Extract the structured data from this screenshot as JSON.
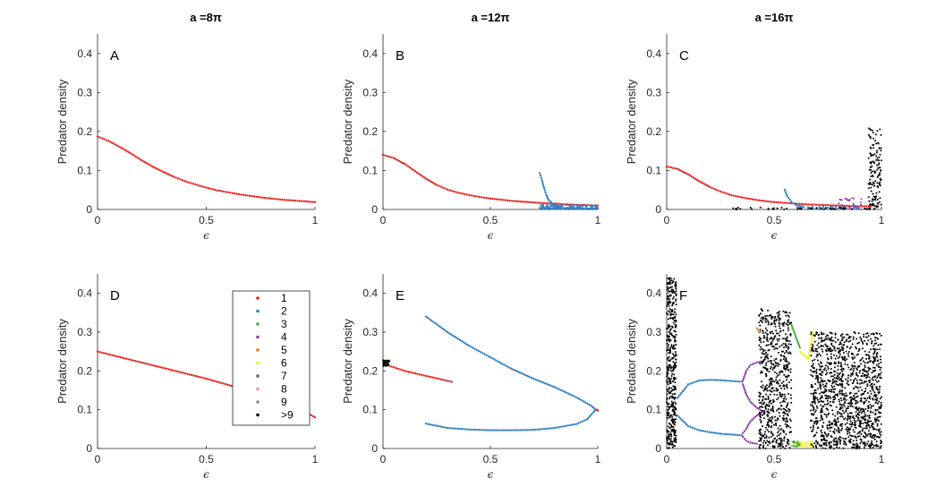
{
  "colors": {
    "1": "#e8231f",
    "2": "#2f7fc1",
    "3": "#3aa83a",
    "4": "#8e3ea8",
    "5": "#ef7a16",
    "6": "#f2ee2c",
    "7": "#8a5a32",
    "8": "#f08aba",
    "9": "#8c8c8c",
    ">9": "#000000"
  },
  "column_titles": [
    "a =8π",
    "a =12π",
    "a =16π"
  ],
  "legend": {
    "entries": [
      {
        "key": "1",
        "label": "1"
      },
      {
        "key": "2",
        "label": "2"
      },
      {
        "key": "3",
        "label": "3"
      },
      {
        "key": "4",
        "label": "4"
      },
      {
        "key": "5",
        "label": "5"
      },
      {
        "key": "6",
        "label": "6"
      },
      {
        "key": "7",
        "label": "7"
      },
      {
        "key": "8",
        "label": "8"
      },
      {
        "key": "9",
        "label": "9"
      },
      {
        "key": ">9",
        "label": ">9"
      }
    ]
  },
  "chart_data": [
    {
      "panel": "A",
      "type": "scatter",
      "xlabel": "ϵ",
      "ylabel": "Predator density",
      "xlim": [
        0,
        1
      ],
      "ylim": [
        0,
        0.45
      ],
      "xticks": [
        {
          "v": 0,
          "label": "0"
        },
        {
          "v": 0.5,
          "label": "0.5"
        },
        {
          "v": 1,
          "label": "1"
        }
      ],
      "yticks": [
        {
          "v": 0,
          "label": "0"
        },
        {
          "v": 0.1,
          "label": "0.1"
        },
        {
          "v": 0.2,
          "label": "0.2"
        },
        {
          "v": 0.3,
          "label": "0.3"
        },
        {
          "v": 0.4,
          "label": "0.4"
        }
      ],
      "series": [
        {
          "key": "1",
          "kind": "curve",
          "x": [
            0,
            0.05,
            0.1,
            0.15,
            0.2,
            0.25,
            0.3,
            0.35,
            0.4,
            0.45,
            0.5,
            0.55,
            0.6,
            0.65,
            0.7,
            0.75,
            0.8,
            0.85,
            0.9,
            0.95,
            1.0
          ],
          "y": [
            0.187,
            0.176,
            0.161,
            0.145,
            0.127,
            0.111,
            0.097,
            0.084,
            0.073,
            0.064,
            0.056,
            0.049,
            0.044,
            0.039,
            0.035,
            0.031,
            0.028,
            0.025,
            0.023,
            0.021,
            0.019
          ]
        }
      ]
    },
    {
      "panel": "B",
      "type": "scatter",
      "xlabel": "ϵ",
      "ylabel": "Predator density",
      "xlim": [
        0,
        1
      ],
      "ylim": [
        0,
        0.45
      ],
      "xticks": [
        {
          "v": 0,
          "label": "0"
        },
        {
          "v": 0.5,
          "label": "0.5"
        },
        {
          "v": 1,
          "label": "1"
        }
      ],
      "yticks": [
        {
          "v": 0,
          "label": "0"
        },
        {
          "v": 0.1,
          "label": "0.1"
        },
        {
          "v": 0.2,
          "label": "0.2"
        },
        {
          "v": 0.3,
          "label": "0.3"
        },
        {
          "v": 0.4,
          "label": "0.4"
        }
      ],
      "series": [
        {
          "key": "1",
          "kind": "curve",
          "x": [
            0,
            0.05,
            0.1,
            0.15,
            0.2,
            0.25,
            0.3,
            0.35,
            0.4,
            0.45,
            0.5,
            0.55,
            0.6,
            0.65,
            0.7,
            0.75,
            0.8,
            0.85,
            0.9,
            0.95,
            1.0
          ],
          "y": [
            0.14,
            0.132,
            0.117,
            0.098,
            0.079,
            0.063,
            0.051,
            0.043,
            0.037,
            0.032,
            0.028,
            0.025,
            0.022,
            0.02,
            0.018,
            0.016,
            0.015,
            0.013,
            0.012,
            0.011,
            0.01
          ]
        },
        {
          "key": "2",
          "kind": "curve",
          "x": [
            0.73,
            0.74,
            0.75,
            0.76,
            0.77,
            0.79,
            0.81
          ],
          "y": [
            0.093,
            0.075,
            0.055,
            0.038,
            0.025,
            0.015,
            0.01
          ]
        },
        {
          "key": "2",
          "kind": "curve",
          "x": [
            0.73,
            0.75,
            0.8,
            0.85,
            0.9,
            0.95,
            1.0
          ],
          "y": [
            0.004,
            0.004,
            0.003,
            0.003,
            0.003,
            0.002,
            0.002
          ]
        },
        {
          "key": "2",
          "kind": "band",
          "xmin": 0.73,
          "xmax": 1.0,
          "ymin": 0.0,
          "ymax": 0.012,
          "n": 150
        }
      ]
    },
    {
      "panel": "C",
      "type": "scatter",
      "xlabel": "ϵ",
      "ylabel": "Predator density",
      "xlim": [
        0,
        1
      ],
      "ylim": [
        0,
        0.45
      ],
      "xticks": [
        {
          "v": 0,
          "label": "0"
        },
        {
          "v": 0.5,
          "label": "0.5"
        },
        {
          "v": 1,
          "label": "1"
        }
      ],
      "yticks": [
        {
          "v": 0,
          "label": "0"
        },
        {
          "v": 0.1,
          "label": "0.1"
        },
        {
          "v": 0.2,
          "label": "0.2"
        },
        {
          "v": 0.3,
          "label": "0.3"
        },
        {
          "v": 0.4,
          "label": "0.4"
        }
      ],
      "series": [
        {
          "key": "1",
          "kind": "curve",
          "x": [
            0,
            0.05,
            0.1,
            0.15,
            0.2,
            0.25,
            0.3,
            0.35,
            0.4,
            0.45,
            0.5,
            0.55,
            0.6,
            0.65,
            0.7,
            0.75,
            0.8,
            0.85,
            0.9,
            0.95
          ],
          "y": [
            0.11,
            0.104,
            0.09,
            0.073,
            0.058,
            0.046,
            0.037,
            0.031,
            0.026,
            0.022,
            0.019,
            0.017,
            0.015,
            0.013,
            0.012,
            0.011,
            0.01,
            0.009,
            0.008,
            0.008
          ]
        },
        {
          "key": "2",
          "kind": "curve",
          "x": [
            0.55,
            0.56,
            0.58,
            0.6,
            0.63
          ],
          "y": [
            0.05,
            0.035,
            0.02,
            0.012,
            0.008
          ]
        },
        {
          "key": "2",
          "kind": "band",
          "xmin": 0.6,
          "xmax": 0.9,
          "ymin": 0.0,
          "ymax": 0.008,
          "n": 70
        },
        {
          "key": "4",
          "kind": "band",
          "xmin": 0.8,
          "xmax": 0.95,
          "ymin": 0.0,
          "ymax": 0.03,
          "n": 30
        },
        {
          "key": ">9",
          "kind": "band",
          "xmin": 0.3,
          "xmax": 0.95,
          "ymin": 0.0,
          "ymax": 0.005,
          "n": 50
        },
        {
          "key": ">9",
          "kind": "band",
          "xmin": 0.94,
          "xmax": 1.0,
          "ymin": 0.0,
          "ymax": 0.21,
          "n": 140
        }
      ]
    },
    {
      "panel": "D",
      "type": "scatter",
      "xlabel": "ϵ",
      "ylabel": "Predator density",
      "xlim": [
        0,
        1
      ],
      "ylim": [
        0,
        0.45
      ],
      "xticks": [
        {
          "v": 0,
          "label": "0"
        },
        {
          "v": 0.5,
          "label": "0.5"
        },
        {
          "v": 1,
          "label": "1"
        }
      ],
      "yticks": [
        {
          "v": 0,
          "label": "0"
        },
        {
          "v": 0.1,
          "label": "0.1"
        },
        {
          "v": 0.2,
          "label": "0.2"
        },
        {
          "v": 0.3,
          "label": "0.3"
        },
        {
          "v": 0.4,
          "label": "0.4"
        }
      ],
      "series": [
        {
          "key": "1",
          "kind": "curve",
          "x": [
            0,
            0.25,
            0.5,
            0.75,
            0.9,
            1.0
          ],
          "y": [
            0.25,
            0.215,
            0.18,
            0.14,
            0.113,
            0.08
          ]
        }
      ]
    },
    {
      "panel": "E",
      "type": "scatter",
      "xlabel": "ϵ",
      "ylabel": "Predator density",
      "xlim": [
        0,
        1
      ],
      "ylim": [
        0,
        0.45
      ],
      "xticks": [
        {
          "v": 0,
          "label": "0"
        },
        {
          "v": 0.5,
          "label": "0.5"
        },
        {
          "v": 1,
          "label": "1"
        }
      ],
      "yticks": [
        {
          "v": 0,
          "label": "0"
        },
        {
          "v": 0.1,
          "label": "0.1"
        },
        {
          "v": 0.2,
          "label": "0.2"
        },
        {
          "v": 0.3,
          "label": "0.3"
        },
        {
          "v": 0.4,
          "label": "0.4"
        }
      ],
      "series": [
        {
          "key": ">9",
          "kind": "band",
          "xmin": 0.0,
          "xmax": 0.03,
          "ymin": 0.212,
          "ymax": 0.228,
          "n": 40
        },
        {
          "key": "1",
          "kind": "curve",
          "x": [
            0.03,
            0.1,
            0.2,
            0.32
          ],
          "y": [
            0.213,
            0.2,
            0.187,
            0.172
          ]
        },
        {
          "key": "2",
          "kind": "curve",
          "x": [
            0.2,
            0.3,
            0.4,
            0.5,
            0.6,
            0.7,
            0.8,
            0.9,
            0.97,
            0.99
          ],
          "y": [
            0.34,
            0.3,
            0.265,
            0.235,
            0.205,
            0.18,
            0.158,
            0.132,
            0.11,
            0.1
          ]
        },
        {
          "key": "2",
          "kind": "curve",
          "x": [
            0.2,
            0.3,
            0.4,
            0.5,
            0.6,
            0.7,
            0.8,
            0.9,
            0.95,
            0.99
          ],
          "y": [
            0.064,
            0.053,
            0.049,
            0.047,
            0.047,
            0.048,
            0.053,
            0.063,
            0.075,
            0.1
          ]
        },
        {
          "key": "1",
          "kind": "curve",
          "x": [
            0.995,
            1.0
          ],
          "y": [
            0.1,
            0.098
          ]
        }
      ]
    },
    {
      "panel": "F",
      "type": "scatter",
      "xlabel": "ϵ",
      "ylabel": "Predator density",
      "xlim": [
        0,
        1
      ],
      "ylim": [
        0,
        0.45
      ],
      "xticks": [
        {
          "v": 0,
          "label": "0"
        },
        {
          "v": 0.5,
          "label": "0.5"
        },
        {
          "v": 1,
          "label": "1"
        }
      ],
      "yticks": [
        {
          "v": 0,
          "label": "0"
        },
        {
          "v": 0.1,
          "label": "0.1"
        },
        {
          "v": 0.2,
          "label": "0.2"
        },
        {
          "v": 0.3,
          "label": "0.3"
        },
        {
          "v": 0.4,
          "label": "0.4"
        }
      ],
      "series": [
        {
          "key": ">9",
          "kind": "band",
          "xmin": 0.0,
          "xmax": 0.045,
          "ymin": 0.0,
          "ymax": 0.44,
          "n": 450
        },
        {
          "key": "2",
          "kind": "curve",
          "x": [
            0.05,
            0.1,
            0.15,
            0.2,
            0.25,
            0.3,
            0.35
          ],
          "y": [
            0.13,
            0.165,
            0.175,
            0.177,
            0.176,
            0.174,
            0.172
          ]
        },
        {
          "key": "2",
          "kind": "curve",
          "x": [
            0.05,
            0.1,
            0.15,
            0.2,
            0.25,
            0.3,
            0.35
          ],
          "y": [
            0.085,
            0.058,
            0.047,
            0.042,
            0.038,
            0.036,
            0.034
          ]
        },
        {
          "key": "4",
          "kind": "curve",
          "x": [
            0.355,
            0.37,
            0.39,
            0.42,
            0.45
          ],
          "y": [
            0.175,
            0.2,
            0.215,
            0.222,
            0.225
          ]
        },
        {
          "key": "4",
          "kind": "curve",
          "x": [
            0.355,
            0.37,
            0.39,
            0.42,
            0.45
          ],
          "y": [
            0.165,
            0.14,
            0.12,
            0.105,
            0.095
          ]
        },
        {
          "key": "4",
          "kind": "curve",
          "x": [
            0.355,
            0.37,
            0.39,
            0.42,
            0.45
          ],
          "y": [
            0.04,
            0.05,
            0.07,
            0.085,
            0.095
          ]
        },
        {
          "key": "4",
          "kind": "curve",
          "x": [
            0.355,
            0.37,
            0.39,
            0.42
          ],
          "y": [
            0.03,
            0.02,
            0.015,
            0.012
          ]
        },
        {
          "key": ">9",
          "kind": "band",
          "xmin": 0.43,
          "xmax": 0.58,
          "ymin": 0.0,
          "ymax": 0.36,
          "n": 650
        },
        {
          "key": ">9",
          "kind": "band",
          "xmin": 0.67,
          "xmax": 1.0,
          "ymin": 0.0,
          "ymax": 0.3,
          "n": 1300
        },
        {
          "key": "5",
          "kind": "curve",
          "x": [
            0.42,
            0.43
          ],
          "y": [
            0.31,
            0.3
          ]
        },
        {
          "key": "3",
          "kind": "curve",
          "x": [
            0.58,
            0.6,
            0.62
          ],
          "y": [
            0.32,
            0.29,
            0.26
          ]
        },
        {
          "key": "6",
          "kind": "curve",
          "x": [
            0.62,
            0.64,
            0.66,
            0.68
          ],
          "y": [
            0.25,
            0.24,
            0.23,
            0.3
          ]
        },
        {
          "key": "6",
          "kind": "band",
          "xmin": 0.6,
          "xmax": 0.68,
          "ymin": 0.005,
          "ymax": 0.02,
          "n": 40
        },
        {
          "key": "3",
          "kind": "band",
          "xmin": 0.57,
          "xmax": 0.62,
          "ymin": 0.005,
          "ymax": 0.02,
          "n": 20
        }
      ]
    }
  ]
}
